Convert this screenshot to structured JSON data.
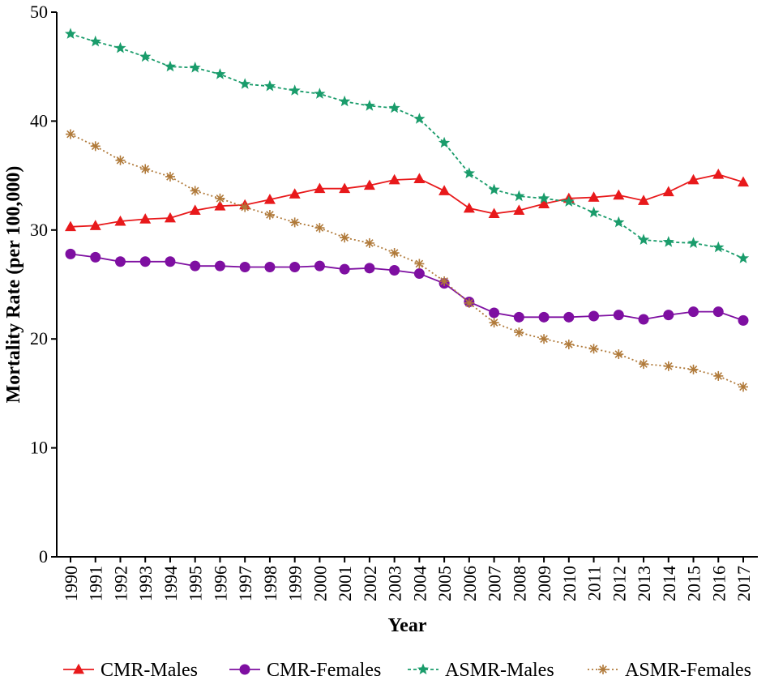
{
  "chart_data": {
    "type": "line",
    "title": "",
    "xlabel": "Year",
    "ylabel": "Mortality Rate (per 100,000)",
    "ylim": [
      0,
      50
    ],
    "yticks": [
      "0",
      "10",
      "20",
      "30",
      "40",
      "50"
    ],
    "grid": false,
    "legend_position": "bottom",
    "categories": [
      "1990",
      "1991",
      "1992",
      "1993",
      "1994",
      "1995",
      "1996",
      "1997",
      "1998",
      "1999",
      "2000",
      "2001",
      "2002",
      "2003",
      "2004",
      "2005",
      "2006",
      "2007",
      "2008",
      "2009",
      "2010",
      "2011",
      "2012",
      "2013",
      "2014",
      "2015",
      "2016",
      "2017"
    ],
    "series": [
      {
        "name": "CMR-Males",
        "color": "#e8191b",
        "marker": "triangle",
        "line": "solid",
        "values": [
          30.3,
          30.4,
          30.8,
          31.0,
          31.1,
          31.8,
          32.2,
          32.3,
          32.8,
          33.3,
          33.8,
          33.8,
          34.1,
          34.6,
          34.7,
          33.6,
          32.0,
          31.5,
          31.8,
          32.4,
          32.9,
          33.0,
          33.2,
          32.7,
          33.5,
          34.6,
          35.1,
          34.4
        ]
      },
      {
        "name": "CMR-Females",
        "color": "#7e0fa1",
        "marker": "circle",
        "line": "solid",
        "values": [
          27.8,
          27.5,
          27.1,
          27.1,
          27.1,
          26.7,
          26.7,
          26.6,
          26.6,
          26.6,
          26.7,
          26.4,
          26.5,
          26.3,
          26.0,
          25.1,
          23.4,
          22.4,
          22.0,
          22.0,
          22.0,
          22.1,
          22.2,
          21.8,
          22.2,
          22.5,
          22.5,
          21.7
        ]
      },
      {
        "name": "ASMR-Males",
        "color": "#1a9c6b",
        "marker": "star",
        "line": "dashed",
        "values": [
          48.0,
          47.3,
          46.7,
          45.9,
          45.0,
          44.9,
          44.3,
          43.4,
          43.2,
          42.8,
          42.5,
          41.8,
          41.4,
          41.2,
          40.2,
          38.0,
          35.2,
          33.7,
          33.1,
          32.9,
          32.6,
          31.6,
          30.7,
          29.1,
          28.9,
          28.8,
          28.4,
          27.4
        ]
      },
      {
        "name": "ASMR-Females",
        "color": "#b07a3a",
        "marker": "asterisk",
        "line": "dotted",
        "values": [
          38.8,
          37.7,
          36.4,
          35.6,
          34.9,
          33.6,
          32.9,
          32.1,
          31.4,
          30.7,
          30.2,
          29.3,
          28.8,
          27.9,
          26.9,
          25.3,
          23.3,
          21.5,
          20.6,
          20.0,
          19.5,
          19.1,
          18.6,
          17.7,
          17.5,
          17.2,
          16.6,
          15.6
        ]
      }
    ]
  }
}
